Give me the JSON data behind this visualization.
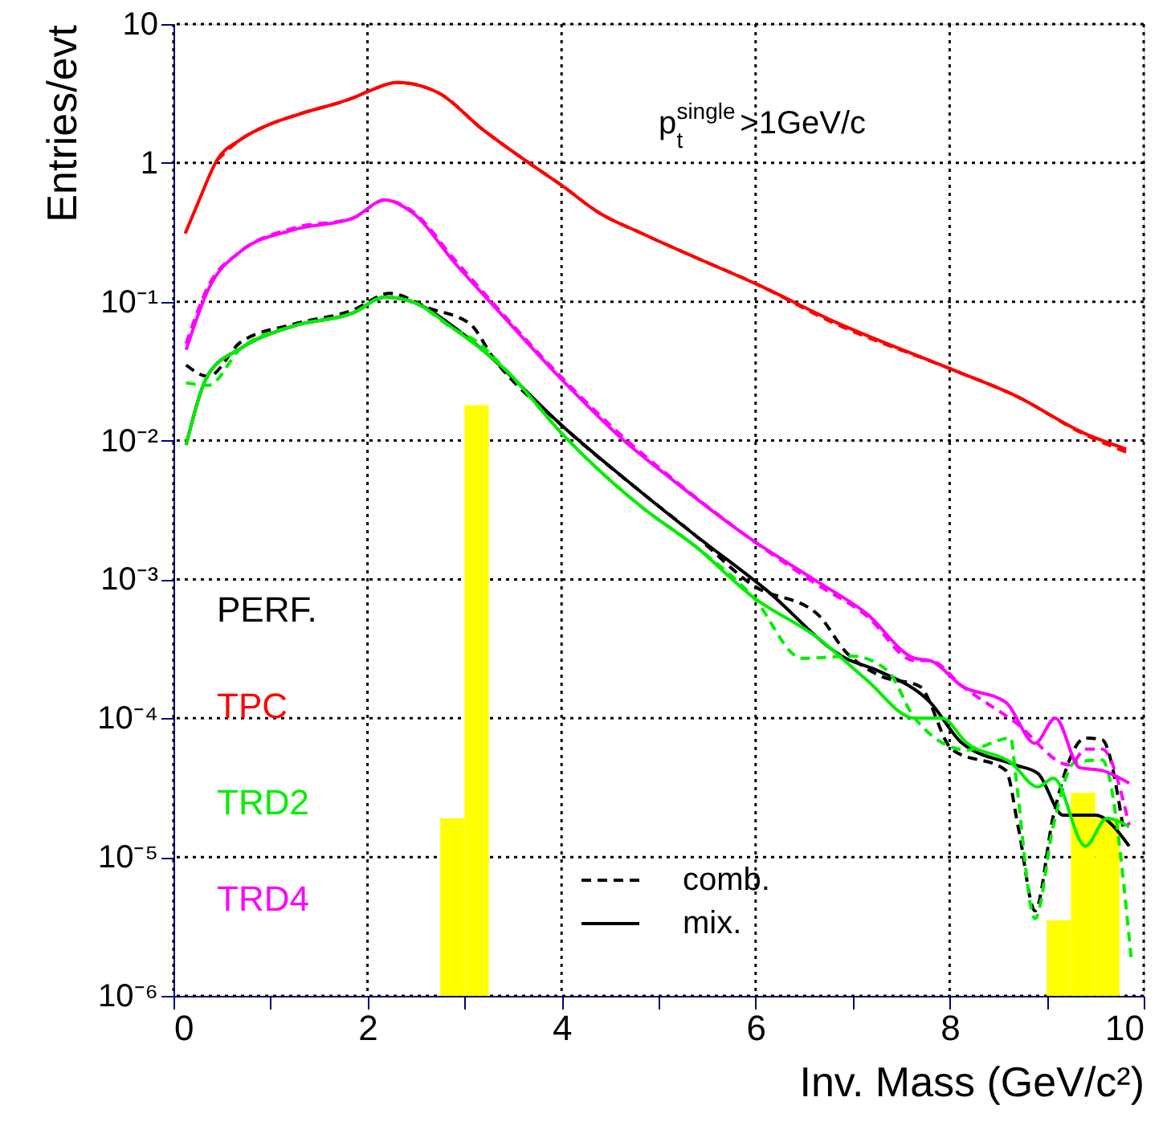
{
  "chart_data": {
    "type": "line",
    "xlabel": "Inv. Mass (GeV/c²)",
    "ylabel": "Entries/evt",
    "annotations": [
      "p$^{single}$$_{t}$>1GeV/c",
      "comb.",
      "mix."
    ],
    "xlim": [
      0,
      10
    ],
    "xticks": [
      0,
      {
        "value": 1,
        "label": null
      },
      2,
      {
        "value": 3,
        "label": null
      },
      4,
      {
        "value": 5,
        "label": null
      },
      6,
      {
        "value": 7,
        "label": null
      },
      8,
      {
        "value": 9,
        "label": null
      },
      10
    ],
    "ylim": [
      1e-06,
      10
    ],
    "yticks": [
      {
        "value": 1e-06,
        "label": "10⁻⁶"
      },
      {
        "value": 1e-05,
        "label": "10⁻⁵"
      },
      {
        "value": 0.0001,
        "label": "10⁻⁴"
      },
      {
        "value": 0.001,
        "label": "10⁻³"
      },
      {
        "value": 0.01,
        "label": "10⁻²"
      },
      {
        "value": 0.1,
        "label": "10⁻¹"
      },
      1,
      10
    ],
    "log": "y",
    "grid": true,
    "legend": "bottom left",
    "series": [
      {
        "name": "PERF.",
        "color": "#000000",
        "line_style": "solid",
        "x": [
          0.13,
          0.36,
          0.69,
          1.24,
          1.85,
          2.18,
          2.46,
          2.9,
          3.17,
          4.0,
          4.83,
          5.37,
          6.1,
          6.93,
          7.26,
          7.8,
          8.13,
          8.68,
          8.91,
          9.17,
          9.5,
          9.85
        ],
        "values": [
          0.0093,
          0.03,
          0.046,
          0.067,
          0.083,
          0.108,
          0.1,
          0.065,
          0.046,
          0.0129,
          0.0042,
          0.0021,
          0.00085,
          0.00027,
          0.00022,
          0.00013,
          6.6e-05,
          4.6e-05,
          4e-05,
          2e-05,
          2e-05,
          1.2e-05
        ]
      },
      {
        "color": "#000000",
        "line_style": "dashed",
        "x": [
          0.13,
          0.36,
          0.69,
          1.24,
          1.85,
          2.23,
          2.63,
          3.06,
          3.29,
          4.0,
          4.83,
          5.37,
          5.98,
          6.64,
          6.93,
          7.3,
          7.69,
          8.02,
          8.58,
          8.71,
          8.88,
          9.07,
          9.4,
          9.57,
          9.79
        ],
        "values": [
          0.035,
          0.029,
          0.051,
          0.069,
          0.087,
          0.115,
          0.09,
          0.069,
          0.04,
          0.0129,
          0.0042,
          0.0021,
          0.0009,
          0.00056,
          0.0003,
          0.0002,
          0.00017,
          6e-05,
          4.2e-05,
          1.6e-05,
          4.1e-06,
          2e-05,
          7.2e-05,
          7e-05,
          1.6e-05
        ]
      },
      {
        "name": "TPC",
        "color": "#ff0000",
        "line_style": "solid",
        "x": [
          0.12,
          0.25,
          0.45,
          0.69,
          0.97,
          1.3,
          1.85,
          2.02,
          2.3,
          2.73,
          3.17,
          3.62,
          4.0,
          4.38,
          4.83,
          5.37,
          6.0,
          6.81,
          8.0,
          8.68,
          9.4,
          9.82
        ],
        "values": [
          0.31,
          0.51,
          1.05,
          1.47,
          1.87,
          2.25,
          2.94,
          3.3,
          3.8,
          3.2,
          1.78,
          1.05,
          0.69,
          0.44,
          0.31,
          0.21,
          0.135,
          0.072,
          0.033,
          0.021,
          0.0112,
          0.0087
        ]
      },
      {
        "color": "#ff0000",
        "line_style": "dashed",
        "x": [
          0.45,
          0.69,
          0.97,
          1.3,
          1.85,
          2.02,
          2.3,
          2.73,
          3.17,
          3.62,
          4.0,
          4.38,
          4.83,
          5.37,
          6.0,
          6.81,
          8.0,
          8.68,
          9.4,
          9.87
        ],
        "values": [
          1.05,
          1.47,
          1.87,
          2.25,
          2.94,
          3.3,
          3.8,
          3.2,
          1.78,
          1.05,
          0.69,
          0.44,
          0.31,
          0.21,
          0.135,
          0.07,
          0.033,
          0.021,
          0.011,
          0.008
        ]
      },
      {
        "name": "TRD2",
        "color": "#00ee00",
        "line_style": "solid",
        "x": [
          0.13,
          0.36,
          0.69,
          1.24,
          1.85,
          2.18,
          2.46,
          2.9,
          3.45,
          4.0,
          4.83,
          5.37,
          5.98,
          6.64,
          7.14,
          7.64,
          7.92,
          8.18,
          8.63,
          8.91,
          9.07,
          9.4,
          9.62,
          9.85
        ],
        "values": [
          0.0093,
          0.03,
          0.046,
          0.067,
          0.083,
          0.108,
          0.1,
          0.063,
          0.031,
          0.0113,
          0.0033,
          0.00175,
          0.00074,
          0.00038,
          0.00019,
          0.0001,
          0.0001,
          6.6e-05,
          4.8e-05,
          3.2e-05,
          3.7e-05,
          1.2e-05,
          1.9e-05,
          1.65e-05
        ]
      },
      {
        "color": "#00ee00",
        "line_style": "dashed",
        "x": [
          0.13,
          0.36,
          0.69,
          1.24,
          1.85,
          2.18,
          2.46,
          2.9,
          3.12,
          3.45,
          4.0,
          4.83,
          5.37,
          5.98,
          6.48,
          7.0,
          7.36,
          7.64,
          8.18,
          8.63,
          8.68,
          8.88,
          9.07,
          9.29,
          9.57,
          9.87
        ],
        "values": [
          0.026,
          0.025,
          0.046,
          0.067,
          0.083,
          0.108,
          0.1,
          0.063,
          0.052,
          0.031,
          0.0113,
          0.0033,
          0.00175,
          0.00074,
          0.00027,
          0.00028,
          0.00022,
          0.0001,
          5.9e-05,
          7.2e-05,
          3.9e-05,
          3.6e-06,
          1.7e-05,
          4.8e-05,
          5e-05,
          1.9e-06
        ]
      },
      {
        "name": "TRD4",
        "color": "#ff00ff",
        "line_style": "solid",
        "x": [
          0.13,
          0.36,
          0.69,
          1.24,
          1.85,
          2.18,
          2.46,
          2.9,
          3.34,
          3.95,
          4.61,
          5.16,
          5.93,
          6.6,
          7.14,
          7.64,
          7.8,
          8.13,
          8.58,
          8.88,
          9.09,
          9.34,
          9.57,
          9.85
        ],
        "values": [
          0.045,
          0.123,
          0.23,
          0.33,
          0.4,
          0.54,
          0.44,
          0.19,
          0.087,
          0.03,
          0.0105,
          0.0051,
          0.002,
          0.001,
          0.00057,
          0.00027,
          0.00026,
          0.00017,
          0.00013,
          6.6e-05,
          0.0001,
          4.4e-05,
          4.2e-05,
          3.4e-05
        ]
      },
      {
        "color": "#ff00ff",
        "line_style": "dashed",
        "x": [
          0.13,
          0.36,
          0.69,
          1.24,
          1.85,
          2.18,
          2.46,
          2.9,
          3.34,
          3.95,
          4.61,
          5.16,
          5.93,
          6.6,
          7.14,
          7.64,
          7.8,
          8.13,
          8.68,
          9.24,
          9.4,
          9.57,
          9.85
        ],
        "values": [
          0.05,
          0.13,
          0.23,
          0.34,
          0.4,
          0.54,
          0.45,
          0.2,
          0.09,
          0.031,
          0.011,
          0.0052,
          0.002,
          0.00095,
          0.00055,
          0.00026,
          0.00026,
          0.00017,
          9.3e-05,
          4.6e-05,
          6e-05,
          6e-05,
          1.7e-05
        ]
      },
      {
        "type": "histogram",
        "color": "#ffff00",
        "bins": [
          2.75,
          3.0,
          3.25,
          9.0,
          9.25,
          9.5,
          9.75
        ],
        "values": [
          1.9e-05,
          0.018,
          null,
          3.5e-06,
          2.9e-05,
          1.9e-05
        ]
      }
    ]
  }
}
